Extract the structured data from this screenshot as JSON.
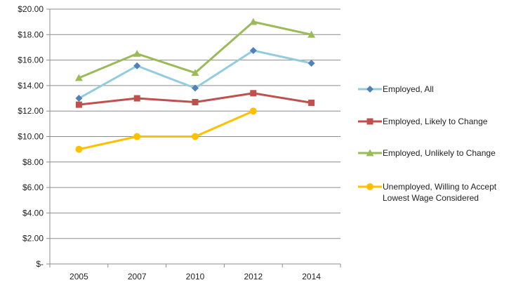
{
  "chart_data": {
    "type": "line",
    "title": "",
    "xlabel": "",
    "ylabel": "",
    "categories": [
      "2005",
      "2007",
      "2010",
      "2012",
      "2014"
    ],
    "y_tick_labels": [
      "$-",
      "$2.00",
      "$4.00",
      "$6.00",
      "$8.00",
      "$10.00",
      "$12.00",
      "$14.00",
      "$16.00",
      "$18.00",
      "$20.00"
    ],
    "ylim": [
      0,
      20
    ],
    "y_step": 2,
    "grid": true,
    "legend_position": "right",
    "series": [
      {
        "name": "Employed, All",
        "values": [
          13.0,
          15.55,
          13.8,
          16.75,
          15.75
        ],
        "color": "#93CDDD",
        "marker": "diamond",
        "marker_color": "#4F81BD"
      },
      {
        "name": "Employed, Likely to Change",
        "values": [
          12.5,
          13.0,
          12.7,
          13.4,
          12.65
        ],
        "color": "#C0504D",
        "marker": "square",
        "marker_color": "#C0504D"
      },
      {
        "name": "Employed, Unlikely to Change",
        "values": [
          14.6,
          16.5,
          15.0,
          19.0,
          18.0
        ],
        "color": "#9BBB59",
        "marker": "triangle",
        "marker_color": "#9BBB59"
      },
      {
        "name": "Unemployed, Willing to Accept Lowest Wage Considered",
        "legend_lines": [
          "Unemployed, Willing to Accept",
          "Lowest Wage Considered"
        ],
        "values": [
          9.0,
          10.0,
          10.0,
          12.0,
          null
        ],
        "color": "#FFC000",
        "marker": "circle",
        "marker_color": "#FFC000"
      }
    ]
  }
}
